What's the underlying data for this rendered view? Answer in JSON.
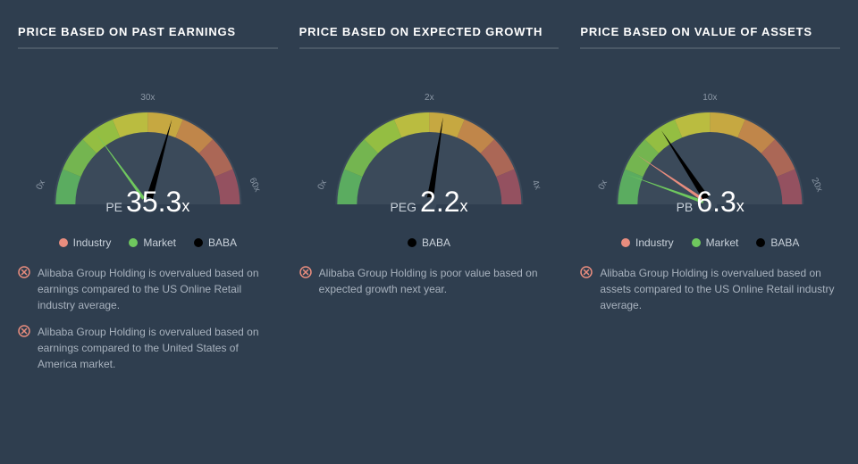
{
  "background_color": "#2f3e4f",
  "title_color": "#ffffff",
  "divider_color": "#4a5866",
  "text_color": "#a8b2be",
  "gauge": {
    "arc_bg_color": "#3b4a5a",
    "hub_color": "#3b4a5a",
    "segment_colors": [
      "#5fb760",
      "#7bc14f",
      "#9fcb3f",
      "#c9c93d",
      "#d6b23e",
      "#cf8d48",
      "#b86a55",
      "#9e5260"
    ],
    "tick_label_color": "#8b97a5",
    "tick_fontsize": 10
  },
  "legend_colors": {
    "industry": "#e98d7e",
    "market": "#6fc85e",
    "baba": "#000000"
  },
  "negative_icon": {
    "ring": "#e98d7e",
    "x": "#e98d7e"
  },
  "panels": [
    {
      "title": "PRICE BASED ON PAST EARNINGS",
      "metric_label": "PE",
      "value": "35.3",
      "suffix": "x",
      "min": 0,
      "mid": 30,
      "max": 60,
      "min_label": "0x",
      "mid_label": "30x",
      "max_label": "60x",
      "needles": [
        {
          "key": "market",
          "frac": 0.3,
          "color": "#6fc85e",
          "width": 2
        },
        {
          "key": "baba",
          "frac": 0.588,
          "color": "#000000",
          "width": 4
        }
      ],
      "legend": [
        {
          "key": "industry",
          "label": "Industry"
        },
        {
          "key": "market",
          "label": "Market"
        },
        {
          "key": "baba",
          "label": "BABA"
        }
      ],
      "notes": [
        "Alibaba Group Holding is overvalued based on earnings compared to the US Online Retail industry average.",
        "Alibaba Group Holding is overvalued based on earnings compared to the United States of America market."
      ]
    },
    {
      "title": "PRICE BASED ON EXPECTED GROWTH",
      "metric_label": "PEG",
      "value": "2.2",
      "suffix": "x",
      "min": 0,
      "mid": 2,
      "max": 4,
      "min_label": "0x",
      "mid_label": "2x",
      "max_label": "4x",
      "needles": [
        {
          "key": "baba",
          "frac": 0.55,
          "color": "#000000",
          "width": 4
        }
      ],
      "legend": [
        {
          "key": "baba",
          "label": "BABA"
        }
      ],
      "notes": [
        "Alibaba Group Holding is poor value based on expected growth next year."
      ]
    },
    {
      "title": "PRICE BASED ON VALUE OF ASSETS",
      "metric_label": "PB",
      "value": "6.3",
      "suffix": "x",
      "min": 0,
      "mid": 10,
      "max": 20,
      "min_label": "0x",
      "mid_label": "10x",
      "max_label": "20x",
      "needles": [
        {
          "key": "industry",
          "frac": 0.19,
          "color": "#e98d7e",
          "width": 2
        },
        {
          "key": "market",
          "frac": 0.11,
          "color": "#6fc85e",
          "width": 2
        },
        {
          "key": "baba",
          "frac": 0.315,
          "color": "#000000",
          "width": 4
        }
      ],
      "legend": [
        {
          "key": "industry",
          "label": "Industry"
        },
        {
          "key": "market",
          "label": "Market"
        },
        {
          "key": "baba",
          "label": "BABA"
        }
      ],
      "notes": [
        "Alibaba Group Holding is overvalued based on assets compared to the US Online Retail industry average."
      ]
    }
  ]
}
